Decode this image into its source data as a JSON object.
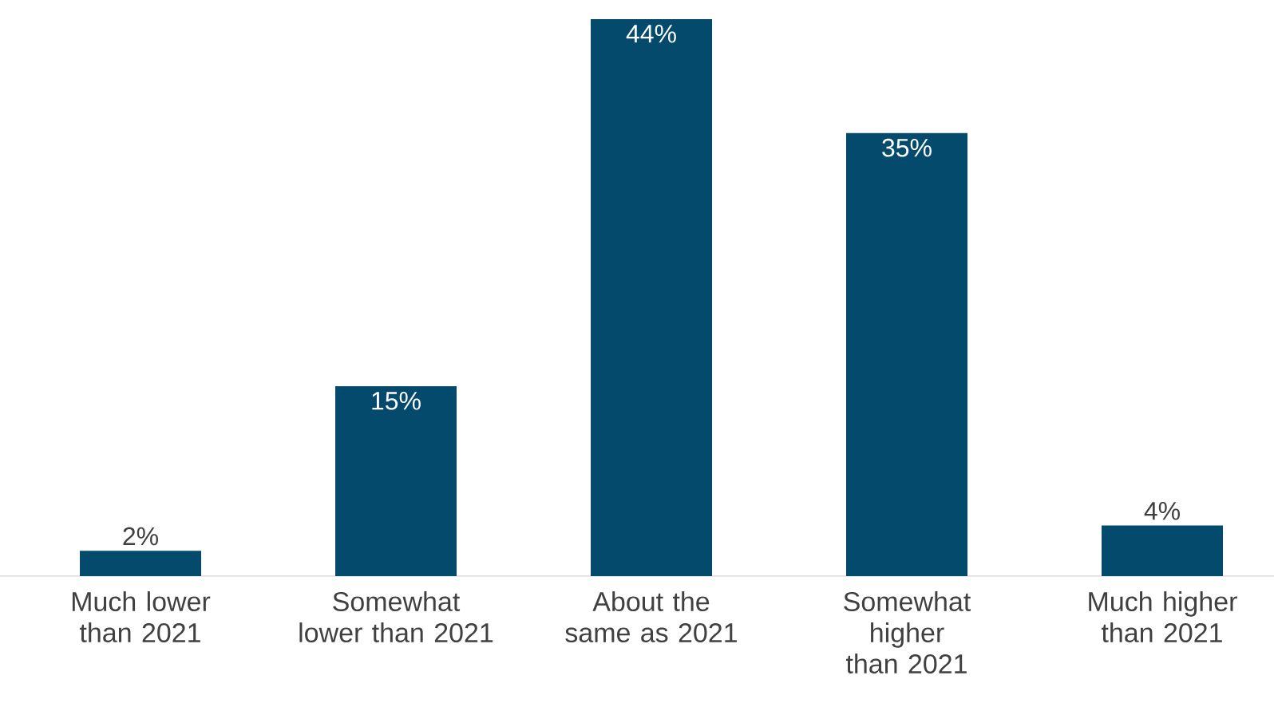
{
  "chart_data": {
    "type": "bar",
    "categories": [
      "Much lower than 2021",
      "Somewhat lower than 2021",
      "About the same as 2021",
      "Somewhat higher than 2021",
      "Much higher than 2021"
    ],
    "values": [
      2,
      15,
      44,
      35,
      4
    ],
    "value_labels": [
      "2%",
      "15%",
      "44%",
      "35%",
      "4%"
    ],
    "color": "#034a6c",
    "ylim": [
      0,
      44
    ]
  }
}
